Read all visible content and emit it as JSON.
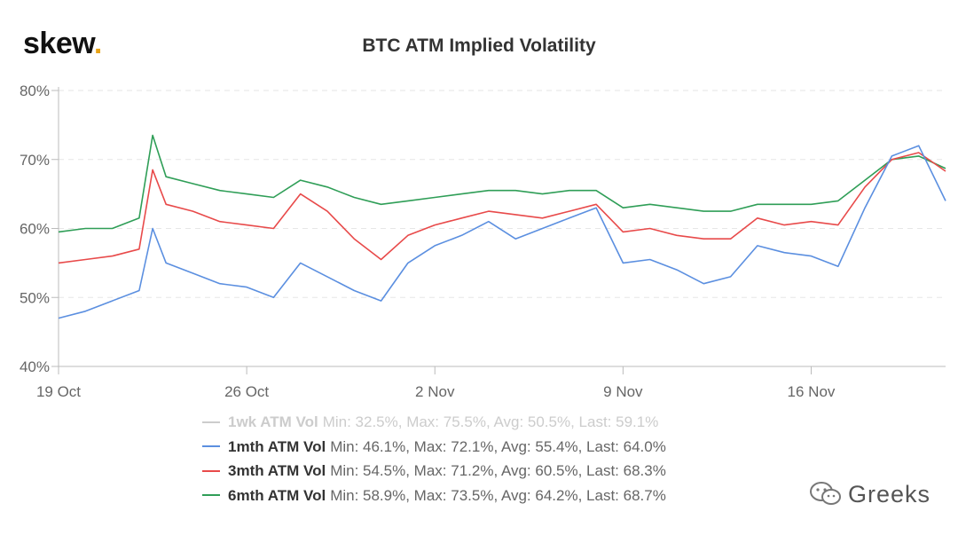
{
  "brand": {
    "text": "skew",
    "dot": "."
  },
  "watermark": {
    "icon": "wechat-icon",
    "text": "Greeks"
  },
  "chart_data": {
    "type": "line",
    "title": "BTC ATM Implied Volatility",
    "xlabel": "",
    "ylabel": "",
    "ylim": [
      40,
      80
    ],
    "yticks": [
      40,
      50,
      60,
      70,
      80
    ],
    "ytick_labels": [
      "40%",
      "50%",
      "60%",
      "70%",
      "80%"
    ],
    "xlim": [
      "2020-10-19",
      "2020-11-21"
    ],
    "xticks": [
      "2020-10-19",
      "2020-10-26",
      "2020-11-02",
      "2020-11-09",
      "2020-11-16"
    ],
    "xtick_labels": [
      "19 Oct",
      "26 Oct",
      "2 Nov",
      "9 Nov",
      "16 Nov"
    ],
    "grid": true,
    "legend_position": "bottom",
    "series": [
      {
        "name": "1wk ATM Vol",
        "stats": "Min: 32.5%, Max: 75.5%, Avg: 50.5%, Last: 59.1%",
        "color": "#cccccc",
        "visible": false,
        "x": [],
        "y": []
      },
      {
        "name": "1mth ATM Vol",
        "stats": "Min: 46.1%, Max: 72.1%, Avg: 55.4%, Last: 64.0%",
        "color": "#5b8fe0",
        "visible": true,
        "x": [
          "2020-10-19",
          "2020-10-20",
          "2020-10-21",
          "2020-10-22",
          "2020-10-22T12:00",
          "2020-10-23",
          "2020-10-24",
          "2020-10-25",
          "2020-10-26",
          "2020-10-27",
          "2020-10-28",
          "2020-10-29",
          "2020-10-30",
          "2020-10-31",
          "2020-11-01",
          "2020-11-02",
          "2020-11-03",
          "2020-11-04",
          "2020-11-05",
          "2020-11-06",
          "2020-11-07",
          "2020-11-08",
          "2020-11-09",
          "2020-11-10",
          "2020-11-11",
          "2020-11-12",
          "2020-11-13",
          "2020-11-14",
          "2020-11-15",
          "2020-11-16",
          "2020-11-17",
          "2020-11-18",
          "2020-11-19",
          "2020-11-20",
          "2020-11-21"
        ],
        "y": [
          47.0,
          48.0,
          49.5,
          51.0,
          60.0,
          55.0,
          53.5,
          52.0,
          51.5,
          50.0,
          55.0,
          53.0,
          51.0,
          49.5,
          55.0,
          57.5,
          59.0,
          61.0,
          58.5,
          60.0,
          61.5,
          63.0,
          55.0,
          55.5,
          54.0,
          52.0,
          53.0,
          57.5,
          56.5,
          56.0,
          54.5,
          63.0,
          70.5,
          72.0,
          64.0
        ]
      },
      {
        "name": "3mth ATM Vol",
        "stats": "Min: 54.5%, Max: 71.2%, Avg: 60.5%, Last: 68.3%",
        "color": "#e84a4a",
        "visible": true,
        "x": [
          "2020-10-19",
          "2020-10-20",
          "2020-10-21",
          "2020-10-22",
          "2020-10-22T12:00",
          "2020-10-23",
          "2020-10-24",
          "2020-10-25",
          "2020-10-26",
          "2020-10-27",
          "2020-10-28",
          "2020-10-29",
          "2020-10-30",
          "2020-10-31",
          "2020-11-01",
          "2020-11-02",
          "2020-11-03",
          "2020-11-04",
          "2020-11-05",
          "2020-11-06",
          "2020-11-07",
          "2020-11-08",
          "2020-11-09",
          "2020-11-10",
          "2020-11-11",
          "2020-11-12",
          "2020-11-13",
          "2020-11-14",
          "2020-11-15",
          "2020-11-16",
          "2020-11-17",
          "2020-11-18",
          "2020-11-19",
          "2020-11-20",
          "2020-11-21"
        ],
        "y": [
          55.0,
          55.5,
          56.0,
          57.0,
          68.5,
          63.5,
          62.5,
          61.0,
          60.5,
          60.0,
          65.0,
          62.5,
          58.5,
          55.5,
          59.0,
          60.5,
          61.5,
          62.5,
          62.0,
          61.5,
          62.5,
          63.5,
          59.5,
          60.0,
          59.0,
          58.5,
          58.5,
          61.5,
          60.5,
          61.0,
          60.5,
          66.0,
          70.0,
          71.0,
          68.3
        ]
      },
      {
        "name": "6mth ATM Vol",
        "stats": "Min: 58.9%, Max: 73.5%, Avg: 64.2%, Last: 68.7%",
        "color": "#2f9e57",
        "visible": true,
        "x": [
          "2020-10-19",
          "2020-10-20",
          "2020-10-21",
          "2020-10-22",
          "2020-10-22T12:00",
          "2020-10-23",
          "2020-10-24",
          "2020-10-25",
          "2020-10-26",
          "2020-10-27",
          "2020-10-28",
          "2020-10-29",
          "2020-10-30",
          "2020-10-31",
          "2020-11-01",
          "2020-11-02",
          "2020-11-03",
          "2020-11-04",
          "2020-11-05",
          "2020-11-06",
          "2020-11-07",
          "2020-11-08",
          "2020-11-09",
          "2020-11-10",
          "2020-11-11",
          "2020-11-12",
          "2020-11-13",
          "2020-11-14",
          "2020-11-15",
          "2020-11-16",
          "2020-11-17",
          "2020-11-18",
          "2020-11-19",
          "2020-11-20",
          "2020-11-21"
        ],
        "y": [
          59.5,
          60.0,
          60.0,
          61.5,
          73.5,
          67.5,
          66.5,
          65.5,
          65.0,
          64.5,
          67.0,
          66.0,
          64.5,
          63.5,
          64.0,
          64.5,
          65.0,
          65.5,
          65.5,
          65.0,
          65.5,
          65.5,
          63.0,
          63.5,
          63.0,
          62.5,
          62.5,
          63.5,
          63.5,
          63.5,
          64.0,
          67.0,
          70.0,
          70.5,
          68.7
        ]
      }
    ]
  }
}
